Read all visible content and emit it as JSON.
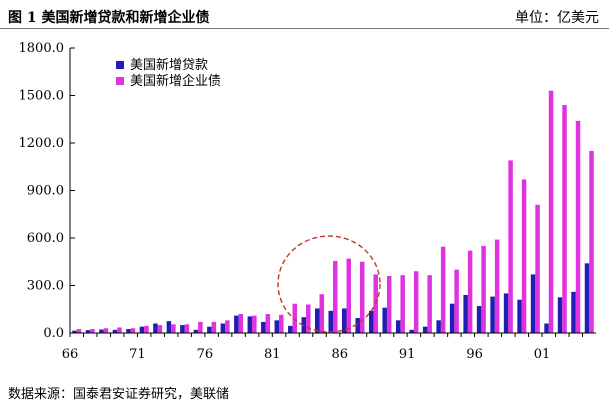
{
  "header": {
    "title": "图 1  美国新增贷款和新增企业债",
    "unit": "单位：亿美元"
  },
  "source": "数据来源：国泰君安证券研究，美联储",
  "colors": {
    "loans": "#1f1fb4",
    "bonds": "#e033e0",
    "circle": "#c0392b"
  },
  "chart_data": {
    "type": "bar",
    "categories": [
      "66",
      "67",
      "68",
      "69",
      "70",
      "71",
      "72",
      "73",
      "74",
      "75",
      "76",
      "77",
      "78",
      "79",
      "80",
      "81",
      "82",
      "83",
      "84",
      "85",
      "86",
      "87",
      "88",
      "89",
      "90",
      "91",
      "92",
      "93",
      "94",
      "95",
      "96",
      "97",
      "98",
      "99",
      "00",
      "01",
      "02",
      "03",
      "04"
    ],
    "x_tick_labels": [
      "66",
      "71",
      "76",
      "81",
      "86",
      "91",
      "96",
      "01"
    ],
    "series": [
      {
        "name": "美国新增贷款",
        "values": [
          15,
          18,
          22,
          20,
          25,
          40,
          60,
          75,
          50,
          20,
          40,
          60,
          110,
          105,
          70,
          80,
          45,
          100,
          155,
          140,
          155,
          95,
          140,
          160,
          80,
          20,
          40,
          80,
          185,
          240,
          170,
          230,
          250,
          210,
          370,
          60,
          225,
          260,
          440
        ]
      },
      {
        "name": "美国新增企业债",
        "values": [
          25,
          25,
          30,
          35,
          30,
          45,
          50,
          55,
          55,
          70,
          70,
          80,
          120,
          110,
          120,
          115,
          185,
          180,
          245,
          455,
          470,
          450,
          370,
          360,
          365,
          390,
          365,
          545,
          400,
          520,
          550,
          590,
          1090,
          970,
          810,
          1530,
          1440,
          1340,
          1150
        ]
      }
    ],
    "ylim": [
      0,
      1800
    ],
    "yticks": [
      "0.0",
      "300.0",
      "600.0",
      "900.0",
      "1200.0",
      "1500.0",
      "1800.0"
    ],
    "annotation": "circle highlighting 1984-1988"
  }
}
